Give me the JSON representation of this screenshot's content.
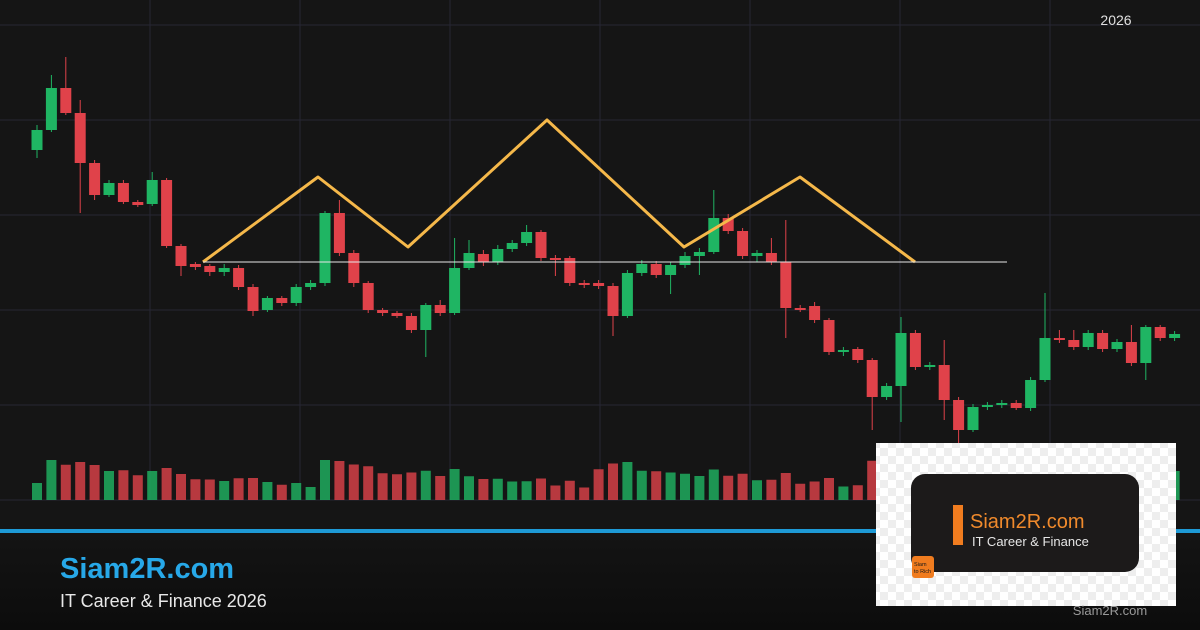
{
  "header": {
    "year": "2026"
  },
  "brand": {
    "name": "Siam2R.com",
    "tagline": "IT Career & Finance 2026"
  },
  "logo": {
    "name": "Siam2R.com",
    "tagline": "IT Career & Finance",
    "badge_line1": "Siam",
    "badge_line2": "to Rich"
  },
  "watermark": "Siam2R.com"
}
